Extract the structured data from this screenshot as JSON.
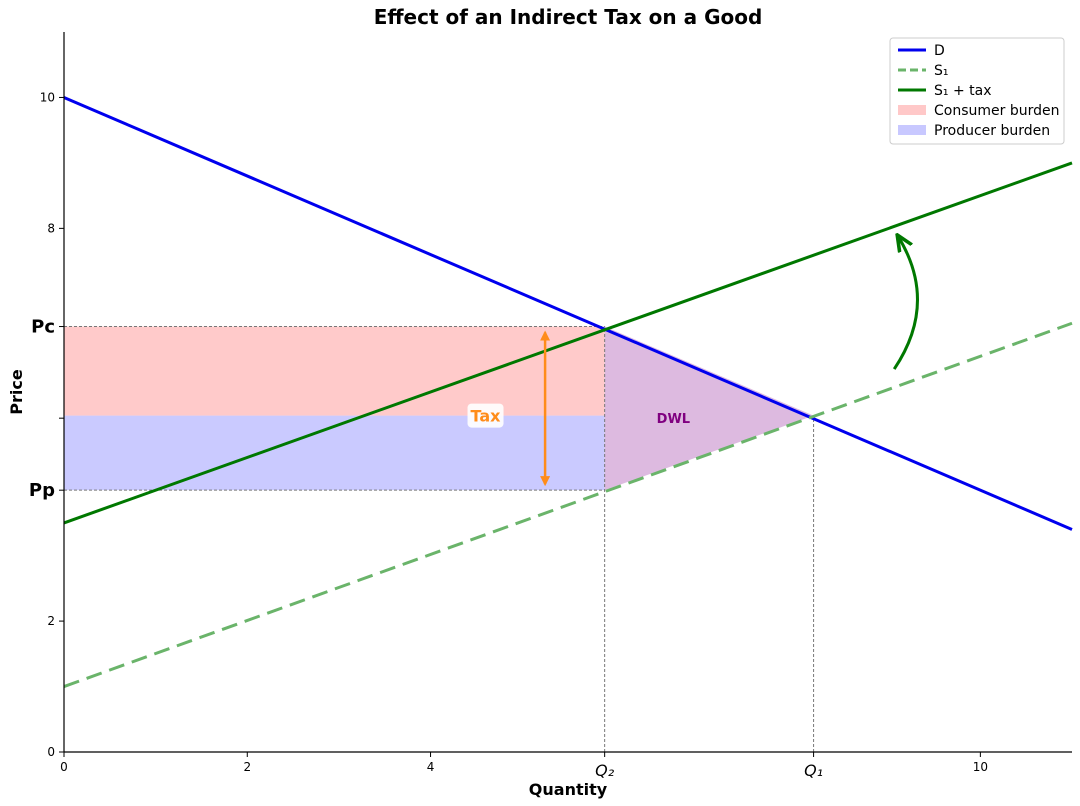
{
  "chart_data": {
    "type": "line",
    "title": "Effect of an Indirect Tax on a Good",
    "xlabel": "Quantity",
    "ylabel": "Price",
    "xlim": [
      0,
      11
    ],
    "ylim": [
      0,
      11
    ],
    "x_ticks": [
      {
        "value": 0,
        "label": "0"
      },
      {
        "value": 2,
        "label": "2"
      },
      {
        "value": 4,
        "label": "4"
      },
      {
        "value": 5.9,
        "label": "Q₂",
        "italic": true
      },
      {
        "value": 8.18,
        "label": "Q₁",
        "italic": true
      },
      {
        "value": 10,
        "label": "10"
      }
    ],
    "y_ticks": [
      {
        "value": 0,
        "label": "0"
      },
      {
        "value": 2,
        "label": "2"
      },
      {
        "value": 4,
        "label": "Pp",
        "color": "#0000ee"
      },
      {
        "value": 5.1,
        "label": ""
      },
      {
        "value": 6.5,
        "label": "Pc",
        "color": "#ee0000"
      },
      {
        "value": 8,
        "label": "8"
      },
      {
        "value": 10,
        "label": "10"
      }
    ],
    "series": [
      {
        "name": "D",
        "color": "#0000ee",
        "dash": "solid",
        "width": 3,
        "points": [
          [
            0,
            10
          ],
          [
            11,
            3.4
          ]
        ]
      },
      {
        "name": "S₁",
        "color": "#6ab46a",
        "dash": "dashed",
        "width": 3,
        "points": [
          [
            0,
            1
          ],
          [
            11,
            6.55
          ]
        ]
      },
      {
        "name": "S₁ + tax",
        "color": "#007800",
        "dash": "solid",
        "width": 3,
        "points": [
          [
            0,
            3.5
          ],
          [
            11,
            9
          ]
        ]
      }
    ],
    "regions": [
      {
        "name": "Consumer burden",
        "color": "#ffb3b3",
        "opacity": 0.7,
        "polygon": [
          [
            0,
            6.5
          ],
          [
            5.9,
            6.5
          ],
          [
            5.9,
            5.14
          ],
          [
            0,
            5.14
          ]
        ]
      },
      {
        "name": "Producer burden",
        "color": "#b3b3ff",
        "opacity": 0.7,
        "polygon": [
          [
            0,
            5.14
          ],
          [
            5.9,
            5.14
          ],
          [
            5.9,
            4
          ],
          [
            0,
            4
          ]
        ]
      },
      {
        "name": "DWL",
        "color": "#d9b3dd",
        "opacity": 0.9,
        "polygon": [
          [
            5.9,
            6.5
          ],
          [
            8.18,
            5.14
          ],
          [
            5.9,
            4
          ]
        ]
      }
    ],
    "reference_lines": [
      {
        "points": [
          [
            0,
            6.5
          ],
          [
            5.9,
            6.5
          ]
        ]
      },
      {
        "points": [
          [
            0,
            4
          ],
          [
            5.9,
            4
          ]
        ]
      },
      {
        "points": [
          [
            5.9,
            0
          ],
          [
            5.9,
            6.5
          ]
        ]
      },
      {
        "points": [
          [
            8.18,
            0
          ],
          [
            8.18,
            5.14
          ]
        ]
      }
    ],
    "annotations": [
      {
        "text": "Tax",
        "x": 4.6,
        "y": 5.14,
        "color": "#ff8c1a"
      },
      {
        "text": "DWL",
        "x": 6.65,
        "y": 5.1,
        "color": "#800080"
      }
    ],
    "tax_arrow": {
      "x": 5.25,
      "y_from": 4,
      "y_to": 6.5,
      "color": "#ff8c1a"
    },
    "shift_arrow": {
      "from": [
        9.3,
        5.85
      ],
      "to": [
        9.3,
        7.9
      ],
      "color": "#007800"
    },
    "legend": {
      "position": "top-right",
      "entries": [
        {
          "label": "D",
          "kind": "line",
          "color": "#0000ee",
          "dash": "solid"
        },
        {
          "label": "S₁",
          "kind": "line",
          "color": "#6ab46a",
          "dash": "dashed"
        },
        {
          "label": "S₁ + tax",
          "kind": "line",
          "color": "#007800",
          "dash": "solid"
        },
        {
          "label": "Consumer burden",
          "kind": "patch",
          "color": "#ffc8c8"
        },
        {
          "label": "Producer burden",
          "kind": "patch",
          "color": "#c8c8ff"
        }
      ]
    },
    "grid": false
  }
}
